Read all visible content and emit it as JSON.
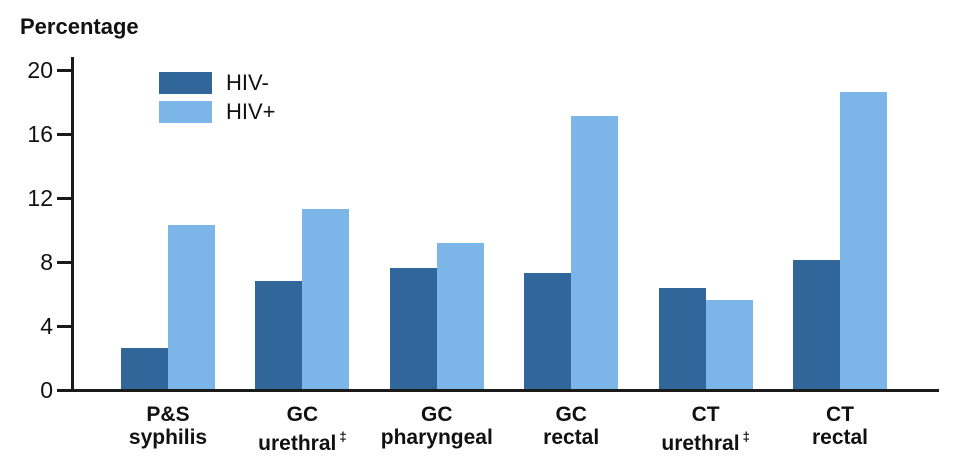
{
  "chart_data": {
    "type": "bar",
    "ylabel": "Percentage",
    "ylim": [
      0,
      20
    ],
    "yticks": [
      0,
      4,
      8,
      12,
      16,
      20
    ],
    "grid": false,
    "legend_position": "top-left inside plot",
    "footnote_symbol": "‡",
    "categories": [
      {
        "line1": "P&S",
        "line2": "syphilis",
        "footnote": false
      },
      {
        "line1": "GC",
        "line2": "urethral",
        "footnote": true
      },
      {
        "line1": "GC",
        "line2": "pharyngeal",
        "footnote": false
      },
      {
        "line1": "GC",
        "line2": "rectal",
        "footnote": false
      },
      {
        "line1": "CT",
        "line2": "urethral",
        "footnote": true
      },
      {
        "line1": "CT",
        "line2": "rectal",
        "footnote": false
      }
    ],
    "series": [
      {
        "name": "HIV-",
        "color": "#31669B",
        "values": [
          2.6,
          6.8,
          7.6,
          7.3,
          6.4,
          8.1
        ]
      },
      {
        "name": "HIV+",
        "color": "#7CB6E8",
        "values": [
          10.3,
          11.3,
          9.2,
          17.1,
          5.6,
          18.6
        ]
      }
    ],
    "axis_color": "#1a1a1a"
  }
}
